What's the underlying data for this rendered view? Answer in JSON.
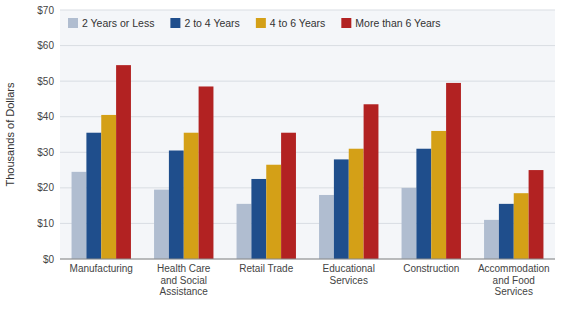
{
  "chart_data": {
    "type": "bar",
    "categories": [
      "Manufacturing",
      "Health Care\nand Social\nAssistance",
      "Retail Trade",
      "Educational\nServices",
      "Construction",
      "Accommodation\nand Food\nServices"
    ],
    "series": [
      {
        "name": "2 Years or Less",
        "color": "#b0bdd0",
        "values": [
          24.5,
          19.5,
          15.5,
          18.0,
          20.0,
          11.0
        ]
      },
      {
        "name": "2 to 4 Years",
        "color": "#1f4e8c",
        "values": [
          35.5,
          30.5,
          22.5,
          28.0,
          31.0,
          15.5
        ]
      },
      {
        "name": "4 to 6 Years",
        "color": "#d4a017",
        "values": [
          40.5,
          35.5,
          26.5,
          31.0,
          36.0,
          18.5
        ]
      },
      {
        "name": "More than 6 Years",
        "color": "#b22222",
        "values": [
          54.5,
          48.5,
          35.5,
          43.5,
          49.5,
          25.0
        ]
      }
    ],
    "ylabel": "Thousands of Dollars",
    "ylim": [
      0,
      70
    ],
    "yticks": [
      {
        "value": 0,
        "label": "$0"
      },
      {
        "value": 10,
        "label": "$10"
      },
      {
        "value": 20,
        "label": "$20"
      },
      {
        "value": 30,
        "label": "$30"
      },
      {
        "value": 40,
        "label": "$40"
      },
      {
        "value": 50,
        "label": "$50"
      },
      {
        "value": 60,
        "label": "$60"
      },
      {
        "value": 70,
        "label": "$70"
      }
    ],
    "grid": true,
    "legend": "upper left"
  }
}
